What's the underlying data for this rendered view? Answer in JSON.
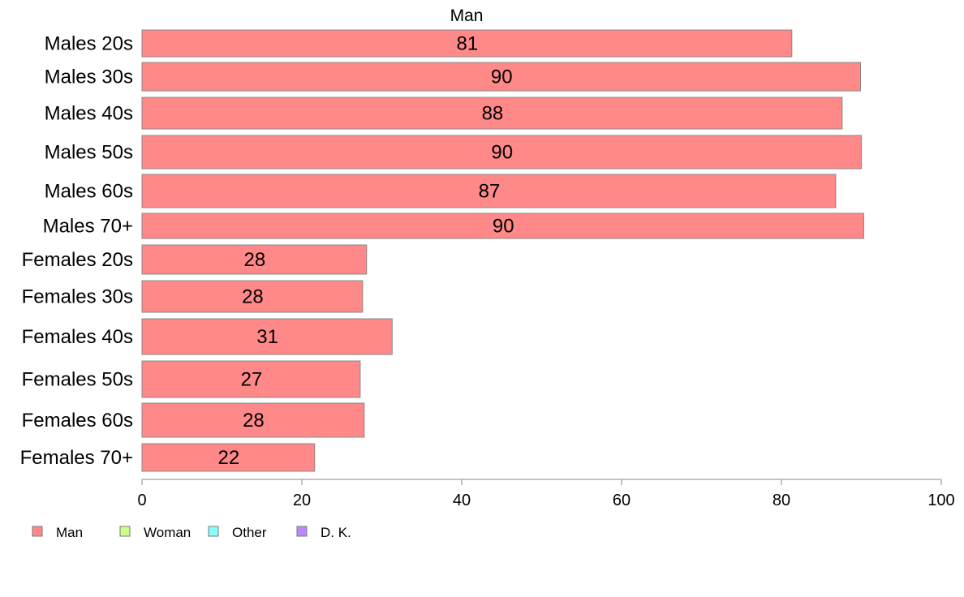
{
  "chart_data": {
    "type": "bar",
    "orientation": "horizontal",
    "title": "Man",
    "categories": [
      "Males 20s",
      "Males 30s",
      "Males 40s",
      "Males 50s",
      "Males 60s",
      "Males 70+",
      "Females 20s",
      "Females 30s",
      "Females 40s",
      "Females 50s",
      "Females 60s",
      "Females 70+"
    ],
    "series": [
      {
        "name": "Man",
        "color": "#ff8888",
        "values": [
          81.3,
          89.9,
          87.6,
          90.0,
          86.8,
          90.3,
          28.1,
          27.6,
          31.3,
          27.3,
          27.8,
          21.6
        ],
        "labels": [
          "81",
          "90",
          "88",
          "90",
          "87",
          "90",
          "28",
          "28",
          "31",
          "27",
          "28",
          "22"
        ]
      }
    ],
    "xlim": [
      0,
      100
    ],
    "xticks": [
      0,
      20,
      40,
      60,
      80,
      100
    ],
    "xlabel": "",
    "ylabel": "",
    "grid": false,
    "legend": {
      "placement": "bottom-left",
      "entries": [
        {
          "label": "Man",
          "color": "#ff8888"
        },
        {
          "label": "Woman",
          "color": "#ccff88"
        },
        {
          "label": "Other",
          "color": "#88ffff"
        },
        {
          "label": "D. K.",
          "color": "#bb88ff"
        }
      ]
    }
  }
}
